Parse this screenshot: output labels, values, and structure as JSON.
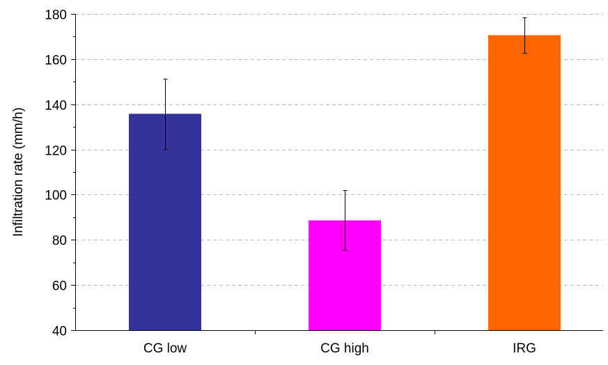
{
  "chart_data": {
    "type": "bar",
    "title": "",
    "xlabel": "",
    "ylabel": "Infiltration rate (mm/h)",
    "categories": [
      "CG low",
      "CG high",
      "IRG"
    ],
    "values": [
      135.8,
      88.6,
      170.6
    ],
    "error_low": [
      120.3,
      75.5,
      162.8
    ],
    "error_high": [
      151.3,
      102.1,
      178.4
    ],
    "colors": [
      "#333399",
      "#ff00ff",
      "#ff6600"
    ],
    "ylim": [
      40,
      180
    ],
    "yticks": [
      40,
      60,
      80,
      100,
      120,
      140,
      160,
      180
    ],
    "ytick_labels": [
      "40",
      "60",
      "80",
      "100",
      "120",
      "140",
      "160",
      "180"
    ],
    "grid": true,
    "legend": "none"
  }
}
